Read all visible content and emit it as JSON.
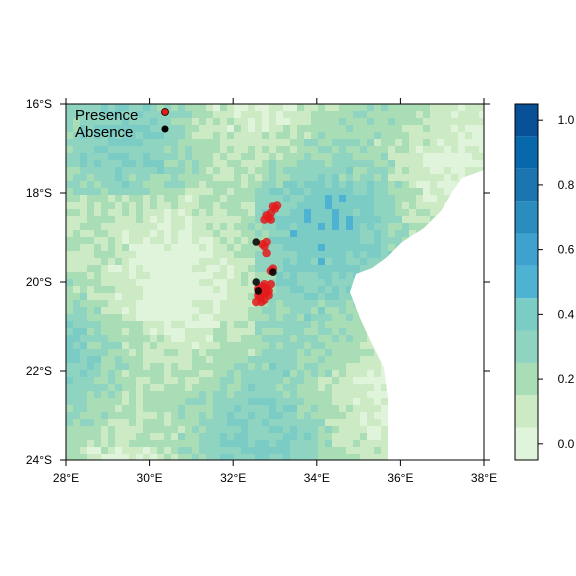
{
  "map": {
    "legend": {
      "presence_label": "Presence",
      "absence_label": "Absence",
      "presence_color": "#e41a1c",
      "absence_color": "#000000"
    },
    "x_ticks": [
      "28°E",
      "30°E",
      "32°E",
      "34°E",
      "36°E",
      "38°E"
    ],
    "y_ticks": [
      "16°S",
      "18°S",
      "20°S",
      "22°S",
      "24°S"
    ],
    "lon_range": [
      28,
      38
    ],
    "lat_range": [
      -24,
      -16
    ],
    "colorbar": {
      "tick_labels": [
        "0.0",
        "0.2",
        "0.4",
        "0.6",
        "0.8",
        "1.0"
      ],
      "range": [
        -0.05,
        1.05
      ],
      "colors": [
        "#e0f3db",
        "#ccebc5",
        "#a8ddb5",
        "#8fd3c1",
        "#7bccc4",
        "#4eb3d3",
        "#2b8cbe",
        "#0868ac"
      ]
    },
    "land_base_color": "#8fd3c1",
    "sea_color": "#ffffff",
    "presence_points": [
      [
        32.8,
        -18.5
      ],
      [
        32.9,
        -18.45
      ],
      [
        33.0,
        -18.35
      ],
      [
        32.95,
        -18.3
      ],
      [
        32.85,
        -18.55
      ],
      [
        32.75,
        -18.6
      ],
      [
        33.05,
        -18.28
      ],
      [
        32.9,
        -18.6
      ],
      [
        32.8,
        -19.1
      ],
      [
        32.75,
        -19.2
      ],
      [
        32.8,
        -19.35
      ],
      [
        32.7,
        -19.15
      ],
      [
        32.9,
        -19.75
      ],
      [
        32.95,
        -19.7
      ],
      [
        32.75,
        -20.05
      ],
      [
        32.8,
        -20.15
      ],
      [
        32.7,
        -20.25
      ],
      [
        32.85,
        -20.2
      ],
      [
        32.65,
        -20.35
      ],
      [
        32.6,
        -20.3
      ],
      [
        32.75,
        -20.4
      ],
      [
        32.55,
        -20.45
      ],
      [
        32.9,
        -20.05
      ],
      [
        32.85,
        -20.3
      ],
      [
        32.7,
        -20.1
      ],
      [
        32.6,
        -20.15
      ],
      [
        32.78,
        -20.25
      ],
      [
        32.68,
        -20.45
      ]
    ],
    "absence_points": [
      [
        32.55,
        -19.1
      ],
      [
        32.55,
        -20.0
      ],
      [
        32.95,
        -19.78
      ],
      [
        32.6,
        -20.2
      ]
    ]
  }
}
